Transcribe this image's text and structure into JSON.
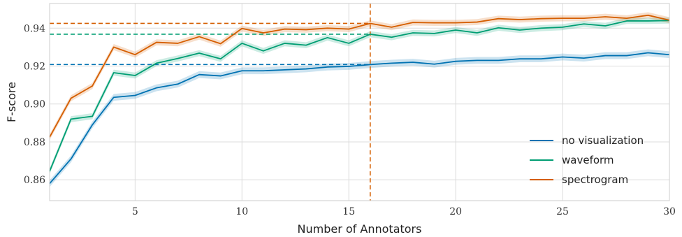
{
  "chart_data": {
    "type": "line",
    "title": "",
    "xlabel": "Number of Annotators",
    "ylabel": "F-score",
    "xlim": [
      1,
      30
    ],
    "ylim": [
      0.849,
      0.953
    ],
    "xticks": [
      5,
      10,
      15,
      20,
      25,
      30
    ],
    "yticks": [
      0.86,
      0.88,
      0.9,
      0.92,
      0.94
    ],
    "ytick_labels": [
      "0.86",
      "0.88",
      "0.90",
      "0.92",
      "0.94"
    ],
    "grid": true,
    "legend_position": "bottom-right",
    "x": [
      1,
      2,
      3,
      4,
      5,
      6,
      7,
      8,
      9,
      10,
      11,
      12,
      13,
      14,
      15,
      16,
      17,
      18,
      19,
      20,
      21,
      22,
      23,
      24,
      25,
      26,
      27,
      28,
      29,
      30
    ],
    "series": [
      {
        "name": "no visualization",
        "color": "#0072b2",
        "values": [
          0.858,
          0.871,
          0.889,
          0.9035,
          0.9045,
          0.9085,
          0.9105,
          0.9155,
          0.9148,
          0.9175,
          0.9175,
          0.918,
          0.9185,
          0.9195,
          0.9198,
          0.9208,
          0.9215,
          0.922,
          0.921,
          0.9225,
          0.923,
          0.923,
          0.9238,
          0.9238,
          0.9248,
          0.9242,
          0.9255,
          0.9255,
          0.927,
          0.926
        ],
        "band": 0.0018
      },
      {
        "name": "waveform",
        "color": "#009e73",
        "values": [
          0.8645,
          0.892,
          0.8935,
          0.9165,
          0.915,
          0.9215,
          0.924,
          0.9268,
          0.9238,
          0.932,
          0.928,
          0.932,
          0.931,
          0.935,
          0.932,
          0.9368,
          0.9352,
          0.9375,
          0.9372,
          0.939,
          0.9375,
          0.9402,
          0.939,
          0.94,
          0.9405,
          0.9422,
          0.9412,
          0.9438,
          0.9438,
          0.944
        ],
        "band": 0.0016
      },
      {
        "name": "spectrogram",
        "color": "#d55e00",
        "values": [
          0.8825,
          0.903,
          0.9095,
          0.93,
          0.926,
          0.9325,
          0.932,
          0.9355,
          0.9318,
          0.9398,
          0.9375,
          0.9395,
          0.9392,
          0.94,
          0.9395,
          0.9425,
          0.9405,
          0.943,
          0.9428,
          0.9428,
          0.9432,
          0.945,
          0.9445,
          0.945,
          0.9452,
          0.9452,
          0.946,
          0.9452,
          0.9468,
          0.9442
        ],
        "band": 0.0016
      }
    ],
    "reference_lines": [
      {
        "series": "no visualization",
        "y": 0.9208,
        "color": "#0072b2"
      },
      {
        "series": "waveform",
        "y": 0.9368,
        "color": "#009e73"
      },
      {
        "series": "spectrogram",
        "y": 0.9425,
        "color": "#d55e00"
      },
      {
        "vertical_x": 16,
        "color": "#d55e00"
      }
    ]
  }
}
